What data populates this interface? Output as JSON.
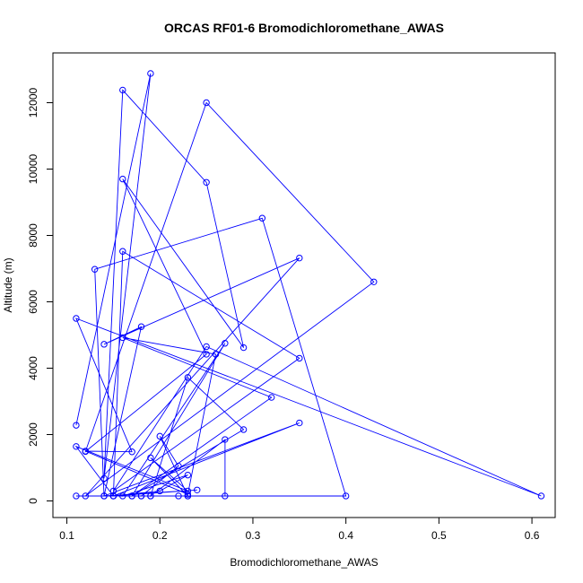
{
  "chart_data": {
    "type": "scatter",
    "title": "ORCAS RF01-6 Bromodichloromethane_AWAS",
    "xlabel": "Bromodichloromethane_AWAS",
    "ylabel": "Altitude (m)",
    "xlim": [
      0.085,
      0.625
    ],
    "ylim": [
      -500,
      13500
    ],
    "xticks": [
      0.1,
      0.2,
      0.3,
      0.4,
      0.5,
      0.6
    ],
    "xtick_labels": [
      "0.1",
      "0.2",
      "0.3",
      "0.4",
      "0.5",
      "0.6"
    ],
    "yticks": [
      0,
      2000,
      4000,
      6000,
      8000,
      10000,
      12000
    ],
    "ytick_labels": [
      "0",
      "2000",
      "4000",
      "6000",
      "8000",
      "10000",
      "12000"
    ],
    "grid": false,
    "legend": "none",
    "connected": true,
    "series": [
      {
        "color": "#0000ff",
        "points": [
          [
            0.11,
            2280
          ],
          [
            0.19,
            12880
          ],
          [
            0.14,
            680
          ],
          [
            0.16,
            12380
          ],
          [
            0.25,
            9600
          ],
          [
            0.29,
            4620
          ],
          [
            0.16,
            9700
          ],
          [
            0.25,
            4420
          ],
          [
            0.12,
            1490
          ],
          [
            0.25,
            12000
          ],
          [
            0.43,
            6600
          ],
          [
            0.12,
            150
          ],
          [
            0.35,
            7320
          ],
          [
            0.14,
            4720
          ],
          [
            0.18,
            5250
          ],
          [
            0.14,
            150
          ],
          [
            0.13,
            6980
          ],
          [
            0.31,
            8520
          ],
          [
            0.4,
            150
          ],
          [
            0.15,
            150
          ],
          [
            0.16,
            7520
          ],
          [
            0.35,
            4300
          ],
          [
            0.15,
            300
          ],
          [
            0.25,
            4650
          ],
          [
            0.61,
            150
          ],
          [
            0.11,
            5500
          ],
          [
            0.17,
            1480
          ],
          [
            0.12,
            1500
          ],
          [
            0.23,
            200
          ],
          [
            0.26,
            4420
          ],
          [
            0.16,
            4920
          ],
          [
            0.32,
            3120
          ],
          [
            0.17,
            150
          ],
          [
            0.29,
            2150
          ],
          [
            0.23,
            3720
          ],
          [
            0.19,
            150
          ],
          [
            0.27,
            1850
          ],
          [
            0.27,
            150
          ],
          [
            0.18,
            150
          ],
          [
            0.22,
            1050
          ],
          [
            0.2,
            1950
          ],
          [
            0.23,
            150
          ],
          [
            0.19,
            1300
          ],
          [
            0.23,
            300
          ],
          [
            0.11,
            1640
          ],
          [
            0.15,
            150
          ],
          [
            0.35,
            2350
          ],
          [
            0.14,
            150
          ],
          [
            0.24,
            330
          ],
          [
            0.15,
            150
          ],
          [
            0.2,
            300
          ],
          [
            0.23,
            780
          ],
          [
            0.16,
            150
          ],
          [
            0.27,
            4750
          ],
          [
            0.17,
            150
          ],
          [
            0.18,
            150
          ],
          [
            0.22,
            150
          ],
          [
            0.19,
            150
          ],
          [
            0.23,
            150
          ],
          [
            0.11,
            150
          ]
        ]
      }
    ]
  }
}
